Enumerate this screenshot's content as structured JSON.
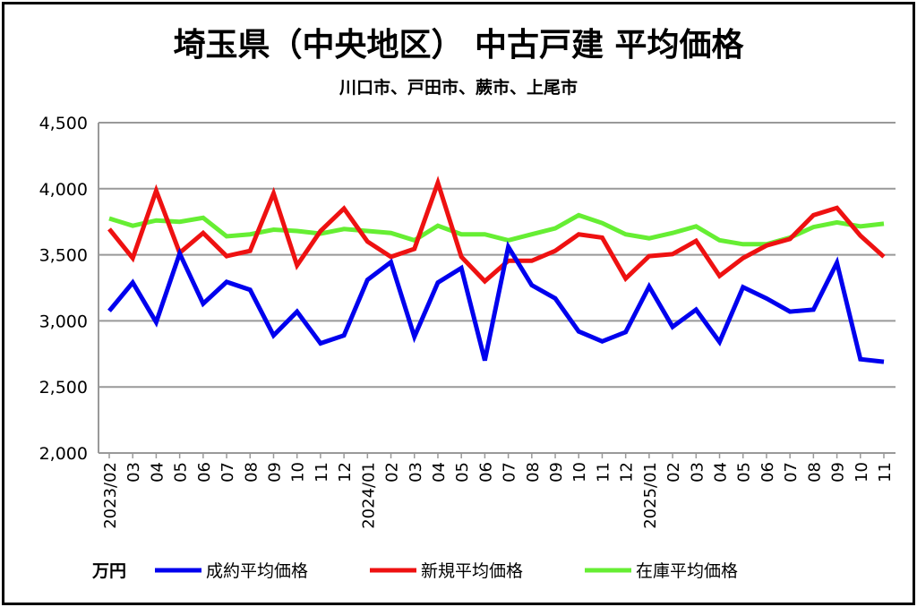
{
  "chart_data": {
    "type": "line",
    "title": "埼玉県（中央地区） 中古戸建 平均価格",
    "subtitle": "川口市、戸田市、蕨市、上尾市",
    "unit_label": "万円",
    "ylim": [
      2000,
      4500
    ],
    "yticks": [
      "2,000",
      "2,500",
      "3,000",
      "3,500",
      "4,000",
      "4,500"
    ],
    "ytick_values": [
      2000,
      2500,
      3000,
      3500,
      4000,
      4500
    ],
    "grid": true,
    "legend_position": "bottom",
    "x": [
      "2023/02",
      "03",
      "04",
      "05",
      "06",
      "07",
      "08",
      "09",
      "10",
      "11",
      "12",
      "2024/01",
      "02",
      "03",
      "04",
      "05",
      "06",
      "07",
      "08",
      "09",
      "10",
      "11",
      "12",
      "2025/01",
      "02",
      "03",
      "04",
      "05",
      "06",
      "07",
      "08",
      "09",
      "10",
      "11"
    ],
    "series": [
      {
        "name": "成約平均価格",
        "color": "#0000ee",
        "values": [
          3075,
          3290,
          2990,
          3510,
          3130,
          3295,
          3235,
          2890,
          3070,
          2830,
          2890,
          3310,
          3445,
          2880,
          3290,
          3400,
          2700,
          3560,
          3270,
          3170,
          2920,
          2845,
          2915,
          3260,
          2955,
          3085,
          2840,
          3255,
          3170,
          3070,
          3085,
          3440,
          2710,
          2690
        ]
      },
      {
        "name": "新規平均価格",
        "color": "#ee1111",
        "values": [
          3695,
          3475,
          3985,
          3515,
          3665,
          3490,
          3530,
          3965,
          3420,
          3680,
          3850,
          3600,
          3485,
          3545,
          4045,
          3485,
          3300,
          3455,
          3455,
          3530,
          3655,
          3630,
          3320,
          3490,
          3505,
          3605,
          3340,
          3475,
          3570,
          3620,
          3800,
          3855,
          3645,
          3485
        ]
      },
      {
        "name": "在庫平均価格",
        "color": "#66ee33",
        "values": [
          3775,
          3720,
          3760,
          3750,
          3780,
          3640,
          3655,
          3690,
          3680,
          3660,
          3695,
          3680,
          3665,
          3610,
          3720,
          3655,
          3655,
          3610,
          3655,
          3700,
          3800,
          3740,
          3655,
          3625,
          3665,
          3715,
          3610,
          3580,
          3580,
          3630,
          3710,
          3745,
          3715,
          3735
        ]
      }
    ]
  }
}
